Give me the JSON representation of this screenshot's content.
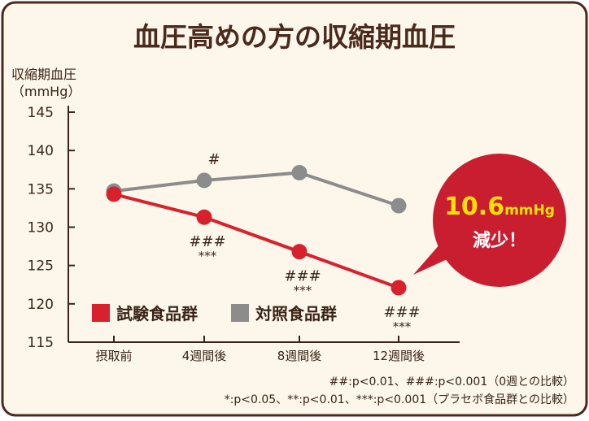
{
  "colors": {
    "background": "#fdf6ea",
    "border": "#4a2a1c",
    "title": "#4a2a1c",
    "text": "#3a2418",
    "test_series": "#d7222e",
    "control_series": "#8c8c8c",
    "callout": "#c81e30",
    "callout_text": "#ffffff",
    "callout_value": "#ffe100"
  },
  "chart_data": {
    "type": "line",
    "title": "血圧高めの方の収縮期血圧",
    "ylabel": "収縮期血圧",
    "yunit": "（mmHg）",
    "ylim": [
      115,
      145
    ],
    "yticks": [
      115,
      120,
      125,
      130,
      135,
      140,
      145
    ],
    "categories": [
      "摂取前",
      "4週間後",
      "8週間後",
      "12週間後"
    ],
    "grid": false,
    "legend_position": "bottom-left",
    "series": [
      {
        "key": "test",
        "name": "試験食品群",
        "values": [
          134.3,
          131.3,
          126.8,
          122.1
        ],
        "color": "#d7222e",
        "marks": [
          {
            "index": 1,
            "top": "###",
            "bottom": "***"
          },
          {
            "index": 2,
            "top": "###",
            "bottom": "***"
          },
          {
            "index": 3,
            "top": "###",
            "bottom": "***"
          }
        ]
      },
      {
        "key": "control",
        "name": "対照食品群",
        "values": [
          134.7,
          136.1,
          137.1,
          132.8
        ],
        "color": "#8c8c8c",
        "marks": [
          {
            "index": 1,
            "top": "#"
          }
        ]
      }
    ],
    "callout": {
      "value": "10.6",
      "unit": "mmHg",
      "label": "減少！"
    },
    "footnotes": [
      "##:p<0.01、###:p<0.001（0週との比較）",
      "*:p<0.05、**:p<0.01、***:p<0.001（プラセボ食品群との比較）"
    ]
  }
}
